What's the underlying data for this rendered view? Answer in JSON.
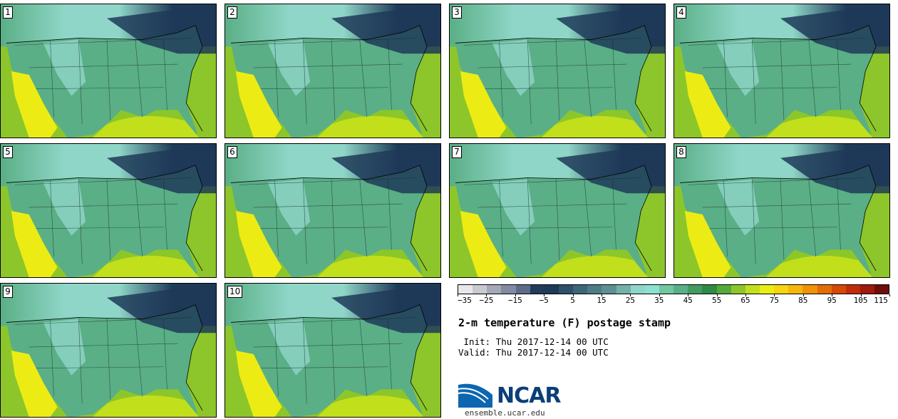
{
  "figure": {
    "title": "2-m temperature (F) postage stamp",
    "init": " Init: Thu 2017-12-14 00 UTC",
    "valid": "Valid: Thu 2017-12-14 00 UTC",
    "logo_text": "NCAR",
    "site": "ensemble.ucar.edu"
  },
  "panels": [
    {
      "label": "1"
    },
    {
      "label": "2"
    },
    {
      "label": "3"
    },
    {
      "label": "4"
    },
    {
      "label": "5"
    },
    {
      "label": "6"
    },
    {
      "label": "7"
    },
    {
      "label": "8"
    },
    {
      "label": "9"
    },
    {
      "label": "10"
    }
  ],
  "colorbar": {
    "ticks": [
      "−35",
      "−25",
      "−15",
      "−5",
      "5",
      "15",
      "25",
      "35",
      "45",
      "55",
      "65",
      "75",
      "85",
      "95",
      "105",
      "115"
    ],
    "colors": [
      "#e8e8e8",
      "#c9c9d0",
      "#a6a8b8",
      "#838aa1",
      "#5d6a88",
      "#243a5c",
      "#1e3a58",
      "#2f4f6a",
      "#3f6678",
      "#4d7b86",
      "#5c9095",
      "#74b0aa",
      "#8fd6c8",
      "#8ce0cf",
      "#72c79f",
      "#5aaf86",
      "#439a62",
      "#2f8a45",
      "#55a83a",
      "#8cc62a",
      "#c2df1c",
      "#ecec14",
      "#f6d40f",
      "#f5b70b",
      "#ef9307",
      "#e46d05",
      "#d64803",
      "#c02c0a",
      "#a01a0d",
      "#6e0d0a"
    ],
    "tick_positions": [
      0,
      2,
      4,
      6,
      8,
      10,
      12,
      14,
      16,
      18,
      20,
      22,
      24,
      26,
      28,
      30
    ]
  },
  "map_colors": {
    "ocean_gulf": "#c2df1c",
    "ocean_atlantic": "#8cc62a",
    "ocean_pacific": "#8cc62a",
    "canada_cold": "#1e3a58",
    "plains": "#5aaf86",
    "rockies": "#8fd6c8",
    "southwest": "#ecec14"
  }
}
